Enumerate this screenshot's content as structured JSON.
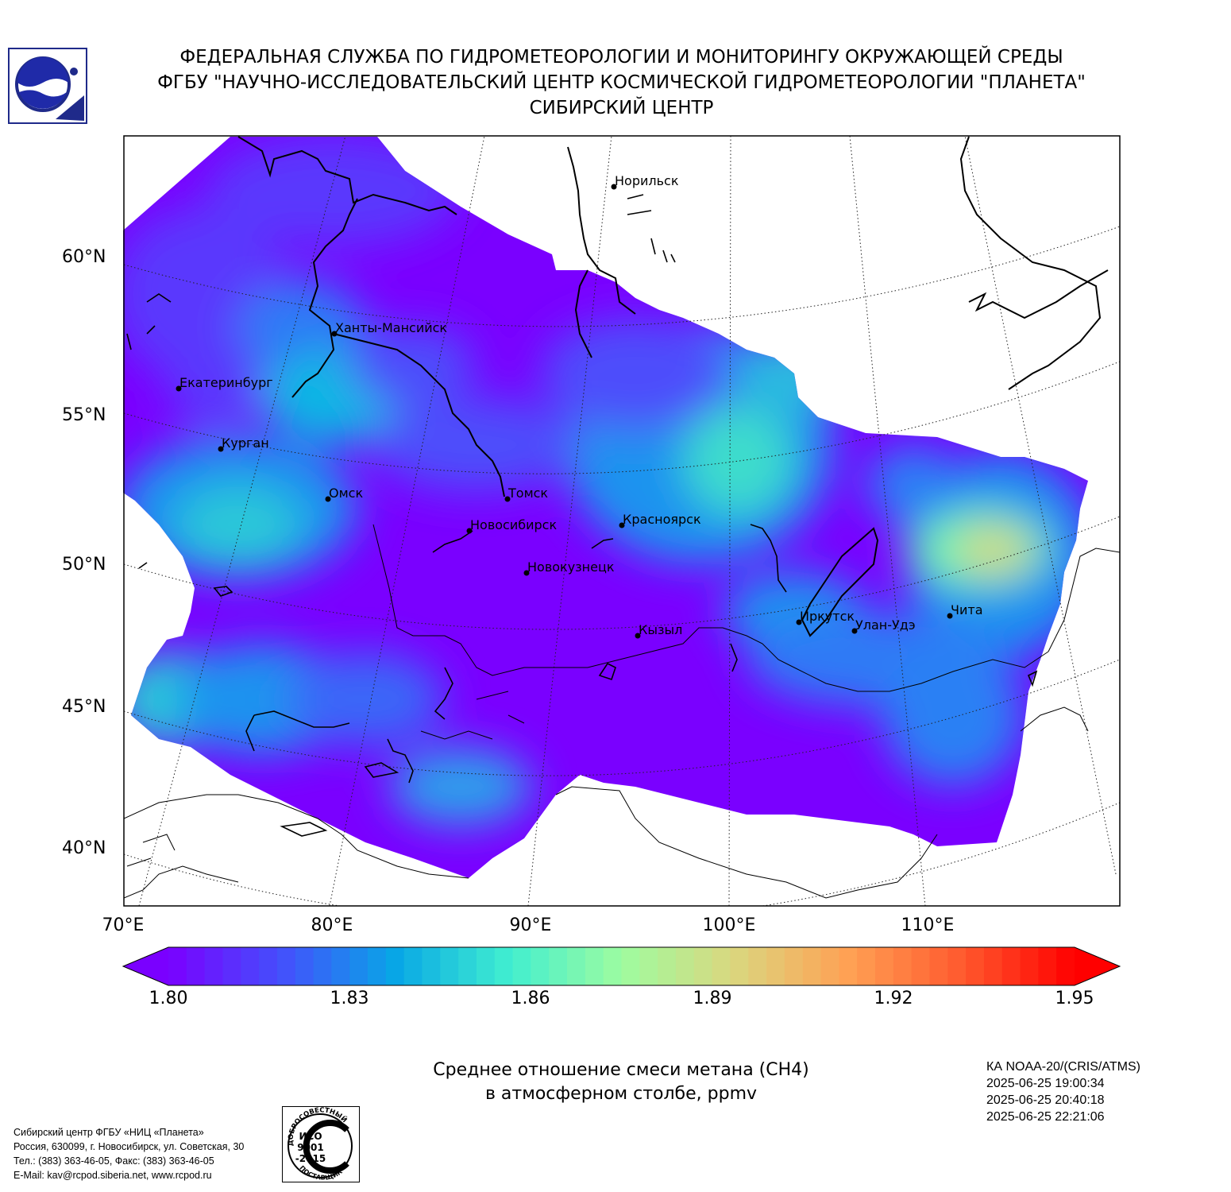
{
  "header": {
    "line1": "ФЕДЕРАЛЬНАЯ СЛУЖБА ПО ГИДРОМЕТЕОРОЛОГИИ И МОНИТОРИНГУ ОКРУЖАЮЩЕЙ СРЕДЫ",
    "line2": "ФГБУ \"НАУЧНО-ИССЛЕДОВАТЕЛЬСКИЙ ЦЕНТР КОСМИЧЕСКОЙ ГИДРОМЕТЕОРОЛОГИИ \"ПЛАНЕТА\"",
    "line3": "СИБИРСКИЙ ЦЕНТР"
  },
  "map": {
    "lat_labels": [
      "60°N",
      "55°N",
      "50°N",
      "45°N",
      "40°N"
    ],
    "lon_labels": [
      "70°E",
      "80°E",
      "90°E",
      "100°E",
      "110°E"
    ],
    "cities": [
      {
        "name": "Норильск"
      },
      {
        "name": "Ханты-Мансийск"
      },
      {
        "name": "Екатеринбург"
      },
      {
        "name": "Курган"
      },
      {
        "name": "Омск"
      },
      {
        "name": "Томск"
      },
      {
        "name": "Новосибирск"
      },
      {
        "name": "Красноярск"
      },
      {
        "name": "Новокузнецк"
      },
      {
        "name": "Иркутск"
      },
      {
        "name": "Улан-Удэ"
      },
      {
        "name": "Чита"
      },
      {
        "name": "Кызыл"
      }
    ]
  },
  "colorbar": {
    "min": 1.8,
    "max": 1.95,
    "ticks": [
      "1.80",
      "1.83",
      "1.86",
      "1.89",
      "1.92",
      "1.95"
    ],
    "colors": [
      "#7a00ff",
      "#4450fc",
      "#08a6e6",
      "#40eed0",
      "#9efca0",
      "#dbd67e",
      "#ffa154",
      "#ff5a2e",
      "#ff0000"
    ]
  },
  "caption": {
    "line1": "Среднее отношение смеси метана (СН4)",
    "line2": "в атмосферном столбе, ppmv"
  },
  "satellite": {
    "name": "КА NOAA-20/(CRIS/ATMS)",
    "times": [
      "2025-06-25 19:00:34",
      "2025-06-25 20:40:18",
      "2025-06-25 22:21:06"
    ]
  },
  "footer": {
    "lines": [
      "Сибирский центр ФГБУ «НИЦ «Планета»",
      "Россия, 630099, г. Новосибирск, ул. Советская, 30",
      "Тел.: (383) 363-46-05, Факс: (383) 363-46-05",
      "E-Mail: kav@rcpod.siberia.net, www.rcpod.ru"
    ]
  },
  "iso_badge": {
    "top": "ДОБРОСОВЕСТНЫЙ",
    "line1": "ИСО",
    "line2": "9001",
    "line3": "-2015",
    "bottom": "ПОСТАВЩИК"
  }
}
